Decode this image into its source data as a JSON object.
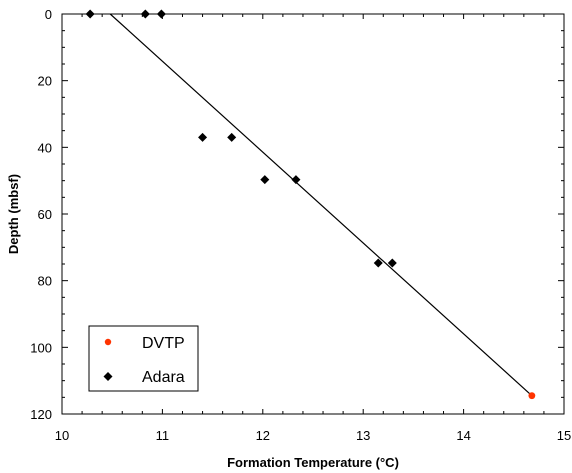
{
  "chart_data": {
    "type": "scatter",
    "title": "",
    "xlabel": "Formation Temperature (°C)",
    "ylabel": "Depth (mbsf)",
    "xlim": [
      10,
      15
    ],
    "ylim": [
      0,
      120
    ],
    "y_inverted": true,
    "x_ticks": [
      10,
      11,
      12,
      13,
      14,
      15
    ],
    "y_ticks": [
      0,
      20,
      40,
      60,
      80,
      100,
      120
    ],
    "grid": false,
    "legend_position": "bottom-left",
    "series": [
      {
        "name": "DVTP",
        "marker": "circle",
        "color": "#ff3300",
        "points": [
          {
            "x": 14.68,
            "y": 114.5
          }
        ]
      },
      {
        "name": "Adara",
        "marker": "diamond",
        "color": "#000000",
        "points": [
          {
            "x": 10.28,
            "y": 0
          },
          {
            "x": 10.83,
            "y": 0
          },
          {
            "x": 10.99,
            "y": 0
          },
          {
            "x": 11.4,
            "y": 37
          },
          {
            "x": 11.69,
            "y": 37
          },
          {
            "x": 12.02,
            "y": 49.7
          },
          {
            "x": 12.33,
            "y": 49.7
          },
          {
            "x": 13.15,
            "y": 74.7
          },
          {
            "x": 13.29,
            "y": 74.7
          }
        ]
      }
    ],
    "fit_line": {
      "color": "#000000",
      "points": [
        {
          "x": 10.48,
          "y": 0
        },
        {
          "x": 14.68,
          "y": 114.5
        }
      ]
    }
  }
}
